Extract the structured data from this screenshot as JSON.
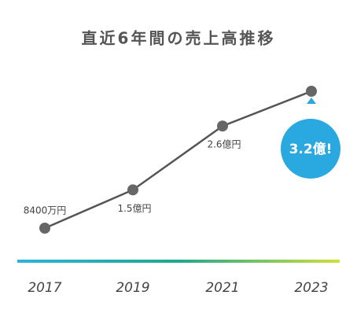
{
  "chart_data": {
    "type": "line",
    "title": "直近6年間の売上高推移",
    "categories": [
      "2017",
      "2019",
      "2021",
      "2023"
    ],
    "values": [
      8400,
      15000,
      26000,
      32000
    ],
    "value_labels": [
      "8400万円",
      "1.5億円",
      "2.6億円",
      "3.2億!"
    ],
    "color": "#555555",
    "marker_color": "#666666",
    "highlight_color": "#2aa8e0"
  }
}
